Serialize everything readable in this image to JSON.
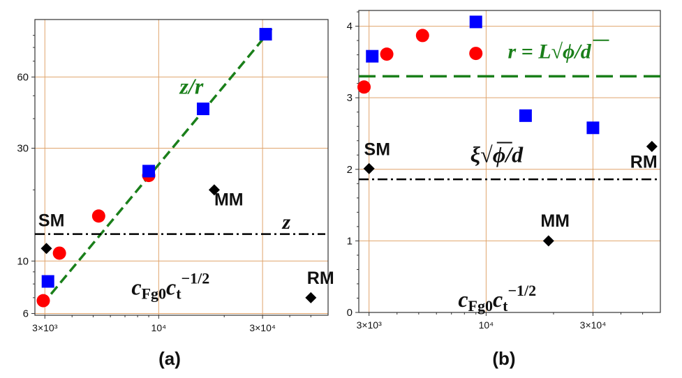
{
  "chart_data": [
    {
      "type": "scatter",
      "panel_label": "(a)",
      "xscale": "log",
      "yscale": "log",
      "xlim": [
        2700,
        60000
      ],
      "ylim": [
        5.9,
        105
      ],
      "xticks": [
        {
          "v": 3000,
          "label": "3×10³"
        },
        {
          "v": 10000,
          "label": "10⁴"
        },
        {
          "v": 30000,
          "label": "3×10⁴"
        }
      ],
      "yticks": [
        {
          "v": 6,
          "label": "6"
        },
        {
          "v": 10,
          "label": "10"
        },
        {
          "v": 30,
          "label": "30"
        },
        {
          "v": 60,
          "label": "60"
        }
      ],
      "grid": true,
      "series": [
        {
          "marker": "circle",
          "color": "#ff0000",
          "points": [
            [
              2950,
              6.8
            ],
            [
              3500,
              10.8
            ],
            [
              5300,
              15.5
            ],
            [
              9000,
              23
            ]
          ]
        },
        {
          "marker": "square",
          "color": "#0000ff",
          "points": [
            [
              3100,
              8.2
            ],
            [
              9000,
              24
            ],
            [
              16000,
              44
            ],
            [
              31000,
              91
            ]
          ]
        },
        {
          "marker": "diamond",
          "color": "#000000",
          "points": [
            [
              3050,
              11.3
            ],
            [
              18000,
              20
            ],
            [
              50000,
              7
            ]
          ]
        }
      ],
      "fit_line": {
        "color": "#1a7f1a",
        "points": [
          [
            2900,
            6.5
          ],
          [
            33000,
            96
          ]
        ]
      },
      "hline": {
        "color": "#000000",
        "y": 13,
        "style": "dashdot"
      },
      "annotations": [
        {
          "text": "SM",
          "x": 2800,
          "y": 14,
          "kind": "label"
        },
        {
          "text": "MM",
          "x": 18000,
          "y": 17.2,
          "kind": "label"
        },
        {
          "text": "RM",
          "x": 48000,
          "y": 8,
          "kind": "label"
        },
        {
          "text": "z",
          "x": 37000,
          "y": 13.7,
          "kind": "math-z"
        },
        {
          "text": "z/r",
          "x": 12500,
          "y": 51,
          "kind": "math-zr"
        },
        {
          "text": "c",
          "x": 7500,
          "y": 7.2,
          "kind": "math-c"
        }
      ]
    },
    {
      "type": "scatter",
      "panel_label": "(b)",
      "xscale": "log",
      "yscale": "linear",
      "xlim": [
        2700,
        60000
      ],
      "ylim": [
        0,
        4.22
      ],
      "xticks": [
        {
          "v": 3000,
          "label": "3×10³"
        },
        {
          "v": 10000,
          "label": "10⁴"
        },
        {
          "v": 30000,
          "label": "3×10⁴"
        }
      ],
      "yticks": [
        {
          "v": 0,
          "label": "0"
        },
        {
          "v": 1,
          "label": "1"
        },
        {
          "v": 2,
          "label": "2"
        },
        {
          "v": 3,
          "label": "3"
        },
        {
          "v": 4,
          "label": "4"
        }
      ],
      "grid": true,
      "series": [
        {
          "marker": "circle",
          "color": "#ff0000",
          "points": [
            [
              2850,
              3.15
            ],
            [
              3600,
              3.61
            ],
            [
              5200,
              3.87
            ],
            [
              9000,
              3.62
            ]
          ]
        },
        {
          "marker": "square",
          "color": "#0000ff",
          "points": [
            [
              3100,
              3.58
            ],
            [
              9000,
              4.06
            ],
            [
              15000,
              2.75
            ],
            [
              30000,
              2.58
            ]
          ]
        },
        {
          "marker": "diamond",
          "color": "#000000",
          "points": [
            [
              3000,
              2.01
            ],
            [
              19000,
              1.0
            ],
            [
              55000,
              2.32
            ]
          ]
        }
      ],
      "hline_green": {
        "color": "#1a7f1a",
        "y": 3.3,
        "style": "dash"
      },
      "hline_black": {
        "color": "#000000",
        "y": 1.86,
        "style": "dashdot"
      },
      "annotations": [
        {
          "text": "SM",
          "x": 2850,
          "y": 2.2,
          "kind": "label"
        },
        {
          "text": "MM",
          "x": 17500,
          "y": 1.2,
          "kind": "label"
        },
        {
          "text": "RM",
          "x": 44000,
          "y": 2.02,
          "kind": "label"
        },
        {
          "text": "r",
          "x": 12500,
          "y": 3.55,
          "kind": "math-r"
        },
        {
          "text": "xi",
          "x": 8500,
          "y": 2.1,
          "kind": "math-xi"
        },
        {
          "text": "c",
          "x": 7500,
          "y": 0.08,
          "kind": "math-c"
        }
      ]
    }
  ]
}
